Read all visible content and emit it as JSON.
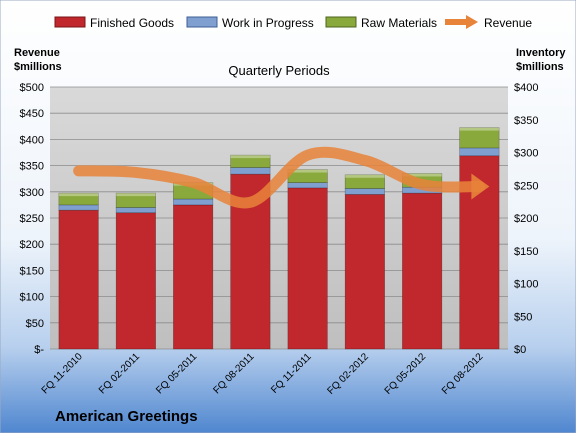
{
  "chart_data": {
    "type": "bar",
    "stacked": true,
    "title": "Quarterly Periods",
    "brand": "American Greetings",
    "categories": [
      "FQ 11-2010",
      "FQ 02-2011",
      "FQ 05-2011",
      "FQ 08-2011",
      "FQ 11-2011",
      "FQ 02-2012",
      "FQ 05-2012",
      "FQ 08-2012"
    ],
    "series": [
      {
        "name": "Finished Goods",
        "axis": "right",
        "color": "#c0282d",
        "values": [
          212,
          208,
          220,
          267,
          246,
          236,
          238,
          295
        ]
      },
      {
        "name": "Work in Progress",
        "axis": "right",
        "color": "#7f9fd0",
        "values": [
          8,
          8,
          9,
          10,
          8,
          9,
          9,
          12
        ]
      },
      {
        "name": "Raw Materials",
        "axis": "right",
        "color": "#8aa93c",
        "values": [
          18,
          22,
          25,
          19,
          20,
          21,
          21,
          31
        ]
      },
      {
        "name": "Revenue",
        "type": "line",
        "axis": "left",
        "color": "#e8833a",
        "values": [
          340,
          337,
          318,
          280,
          370,
          360,
          314,
          310
        ]
      }
    ],
    "left_axis": {
      "label_line1": "Revenue",
      "label_line2": "$millions",
      "range": [
        0,
        500
      ],
      "step": 50,
      "tick_labels": [
        "$-",
        "$50",
        "$100",
        "$150",
        "$200",
        "$250",
        "$300",
        "$350",
        "$400",
        "$450",
        "$500"
      ]
    },
    "right_axis": {
      "label_line1": "Inventory",
      "label_line2": "$millions",
      "range": [
        0,
        400
      ],
      "step": 50,
      "tick_labels": [
        "$0",
        "$50",
        "$100",
        "$150",
        "$200",
        "$250",
        "$300",
        "$350",
        "$400"
      ]
    },
    "legend_position": "top",
    "grid": true
  }
}
